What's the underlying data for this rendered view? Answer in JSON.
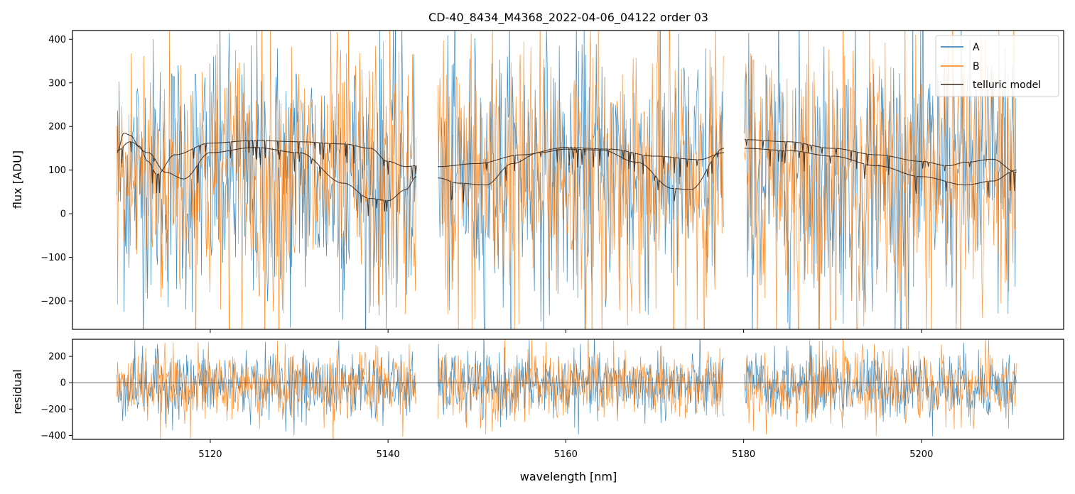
{
  "chart_data": [
    {
      "type": "line",
      "panel": "top",
      "title": "CD-40_8434_M4368_2022-04-06_04122  order 03",
      "xlabel": "",
      "ylabel": "flux [ADU]",
      "xlim": [
        5104.5,
        5216
      ],
      "ylim": [
        -265,
        420
      ],
      "yticks": [
        -200,
        -100,
        0,
        100,
        200,
        300,
        400
      ],
      "yticklabels": [
        "−200",
        "−100",
        "0",
        "100",
        "200",
        "300",
        "400"
      ],
      "xticks": [
        5120,
        5140,
        5160,
        5180,
        5200
      ],
      "grid": false,
      "legend_position": "top-right",
      "legend": [
        "A",
        "B",
        "telluric model"
      ],
      "segments": [
        [
          5109.5,
          5143.2
        ],
        [
          5145.6,
          5177.8
        ],
        [
          5180.1,
          5210.7
        ]
      ],
      "series": [
        {
          "name": "A",
          "color": "#1f77b4",
          "center": 90,
          "noise_amplitude": 170
        },
        {
          "name": "B",
          "color": "#ff7f0e",
          "center": 85,
          "noise_amplitude": 180
        },
        {
          "name": "telluric model",
          "color": "#3a2a1e",
          "curves": [
            {
              "x": [
                5109.5,
                5110.3,
                5111,
                5112,
                5113,
                5114,
                5116,
                5120,
                5125,
                5130,
                5135,
                5138,
                5140,
                5142,
                5143.2
              ],
              "y": [
                140,
                185,
                180,
                155,
                120,
                90,
                135,
                162,
                168,
                165,
                160,
                150,
                120,
                108,
                110
              ]
            },
            {
              "x": [
                5109.5,
                5111,
                5113,
                5115,
                5117,
                5120,
                5125,
                5130,
                5135,
                5138,
                5140,
                5142,
                5143.2
              ],
              "y": [
                145,
                165,
                140,
                95,
                80,
                140,
                152,
                140,
                70,
                35,
                30,
                55,
                85
              ]
            },
            {
              "x": [
                5145.6,
                5150,
                5155,
                5160,
                5165,
                5170,
                5175,
                5177.8
              ],
              "y": [
                108,
                115,
                135,
                152,
                148,
                132,
                124,
                140
              ]
            },
            {
              "x": [
                5145.6,
                5148,
                5151,
                5154,
                5157,
                5160,
                5164,
                5168,
                5172,
                5174,
                5177.8
              ],
              "y": [
                82,
                70,
                66,
                115,
                140,
                148,
                146,
                118,
                58,
                55,
                150
              ]
            },
            {
              "x": [
                5180.1,
                5185,
                5190,
                5195,
                5200,
                5203,
                5205,
                5208,
                5210.7
              ],
              "y": [
                170,
                165,
                150,
                135,
                120,
                110,
                118,
                125,
                95
              ]
            },
            {
              "x": [
                5180.1,
                5185,
                5190,
                5195,
                5200,
                5205,
                5208,
                5210.7
              ],
              "y": [
                150,
                145,
                132,
                110,
                85,
                66,
                75,
                100
              ]
            }
          ]
        }
      ]
    },
    {
      "type": "line",
      "panel": "bottom",
      "xlabel": "wavelength [nm]",
      "ylabel": "residual",
      "xlim": [
        5104.5,
        5216
      ],
      "ylim": [
        -430,
        330
      ],
      "yticks": [
        -400,
        -200,
        0,
        200
      ],
      "yticklabels": [
        "−400",
        "−200",
        "0",
        "200"
      ],
      "xticks": [
        5120,
        5140,
        5160,
        5180,
        5200
      ],
      "xticklabels": [
        "5120",
        "5140",
        "5160",
        "5180",
        "5200"
      ],
      "hline": 0,
      "segments": [
        [
          5109.5,
          5143.2
        ],
        [
          5145.6,
          5177.8
        ],
        [
          5180.1,
          5210.7
        ]
      ],
      "series": [
        {
          "name": "A",
          "color": "#1f77b4",
          "center": -20,
          "noise_amplitude": 140
        },
        {
          "name": "B",
          "color": "#ff7f0e",
          "center": -25,
          "noise_amplitude": 150
        }
      ]
    }
  ]
}
